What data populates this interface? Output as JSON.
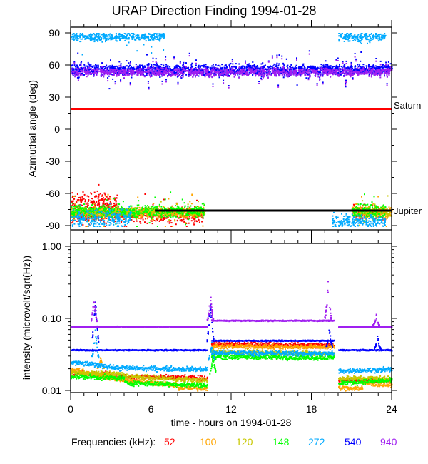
{
  "chart_data": [
    {
      "type": "scatter",
      "title": "URAP Direction Finding  1994-01-28",
      "xlabel": "",
      "ylabel": "Azimuthal angle (deg)",
      "xlim": [
        0,
        24
      ],
      "ylim": [
        -90,
        90
      ],
      "yticks": [
        "90",
        "60",
        "30",
        "0",
        "-30",
        "-60",
        "-90"
      ],
      "ytick_values": [
        90,
        60,
        30,
        0,
        -30,
        -60,
        -90
      ],
      "reference_lines": [
        {
          "label": "Saturn",
          "y": 19,
          "x_range": [
            0,
            24
          ],
          "color": "#ff0000"
        },
        {
          "label": "Jupiter",
          "y": -76,
          "x_range": [
            6.3,
            24
          ],
          "color": "#000000"
        }
      ],
      "series": [
        {
          "name": "52",
          "clusters": [
            [
              0,
              3.5,
              -68,
              6
            ],
            [
              0,
              10,
              -80,
              5
            ],
            [
              21,
              23.5,
              -77,
              4
            ]
          ]
        },
        {
          "name": "100",
          "clusters": [
            [
              0,
              10,
              -77,
              4
            ],
            [
              21,
              24,
              -77,
              5
            ]
          ]
        },
        {
          "name": "120",
          "clusters": [
            [
              0,
              10,
              -77,
              3
            ],
            [
              21,
              24,
              -77,
              4
            ]
          ]
        },
        {
          "name": "148",
          "clusters": [
            [
              0,
              10,
              -76,
              4
            ],
            [
              21,
              23.5,
              -76,
              6
            ]
          ]
        },
        {
          "name": "272",
          "clusters": [
            [
              0,
              4.5,
              -82,
              6
            ],
            [
              0,
              7,
              87,
              3
            ],
            [
              19.5,
              23.5,
              -85,
              4
            ],
            [
              20,
              23.5,
              87,
              3
            ]
          ]
        },
        {
          "name": "540",
          "clusters": [
            [
              0,
              24,
              56,
              4
            ]
          ]
        },
        {
          "name": "940",
          "clusters": [
            [
              0,
              24,
              54,
              3
            ]
          ]
        }
      ]
    },
    {
      "type": "scatter",
      "xlabel": "time - hours on 1994-01-28",
      "ylabel": "intensity (microvolt/sqrt(Hz))",
      "xlim": [
        0,
        24
      ],
      "ylim": [
        0.01,
        1.0
      ],
      "yscale": "log",
      "yticks": [
        "1.00",
        "0.10",
        "0.01"
      ],
      "ytick_values": [
        1.0,
        0.1,
        0.01
      ],
      "xticks": [
        "0",
        "6",
        "12",
        "18",
        "24"
      ],
      "xtick_values": [
        0,
        6,
        12,
        18,
        24
      ],
      "series": [
        {
          "name": "52",
          "segments": [
            [
              0,
              3,
              0.018,
              0.017
            ],
            [
              3,
              10.2,
              0.016,
              0.015
            ],
            [
              10.5,
              19.7,
              0.045,
              0.043
            ],
            [
              20,
              24,
              0.014,
              0.014
            ]
          ],
          "spikes": []
        },
        {
          "name": "100",
          "segments": [
            [
              0,
              3,
              0.02,
              0.015
            ],
            [
              3,
              8,
              0.015,
              0.012
            ],
            [
              8,
              10.2,
              0.011,
              0.011
            ],
            [
              10.5,
              19.7,
              0.042,
              0.041
            ],
            [
              20,
              21.8,
              0.011,
              0.011
            ],
            [
              21.8,
              24,
              0.013,
              0.012
            ]
          ],
          "spikes": [
            [
              2.2,
              0.03
            ]
          ]
        },
        {
          "name": "120",
          "segments": [
            [
              0,
              4,
              0.018,
              0.017
            ],
            [
              4,
              10.2,
              0.016,
              0.014
            ],
            [
              10.5,
              19.7,
              0.035,
              0.033
            ],
            [
              20,
              24,
              0.015,
              0.015
            ]
          ],
          "spikes": []
        },
        {
          "name": "148",
          "segments": [
            [
              0,
              4,
              0.016,
              0.015
            ],
            [
              4,
              10.2,
              0.013,
              0.012
            ],
            [
              10.5,
              19.7,
              0.03,
              0.029
            ],
            [
              20,
              24,
              0.013,
              0.014
            ]
          ],
          "spikes": [
            [
              10.6,
              0.035
            ]
          ]
        },
        {
          "name": "272",
          "segments": [
            [
              0,
              3,
              0.025,
              0.022
            ],
            [
              3,
              10.2,
              0.021,
              0.02
            ],
            [
              10.5,
              19.7,
              0.034,
              0.033
            ],
            [
              20,
              24,
              0.019,
              0.02
            ]
          ],
          "spikes": [
            [
              1.8,
              0.08
            ],
            [
              10.5,
              0.05
            ]
          ]
        },
        {
          "name": "540",
          "segments": [
            [
              0,
              10.2,
              0.037,
              0.037
            ],
            [
              10.5,
              19.7,
              0.05,
              0.05
            ],
            [
              20,
              24,
              0.037,
              0.037
            ]
          ],
          "spikes": [
            [
              1.8,
              0.2
            ],
            [
              10.4,
              0.2
            ],
            [
              19.3,
              0.08
            ],
            [
              22.9,
              0.06
            ]
          ]
        },
        {
          "name": "940",
          "segments": [
            [
              0,
              10.2,
              0.078,
              0.078
            ],
            [
              10.5,
              19.7,
              0.095,
              0.095
            ],
            [
              20,
              24,
              0.078,
              0.078
            ]
          ],
          "spikes": [
            [
              1.7,
              0.22
            ],
            [
              10.4,
              0.25
            ],
            [
              19.2,
              0.35
            ],
            [
              22.8,
              0.12
            ]
          ]
        }
      ]
    }
  ],
  "legend": {
    "label": "Frequencies (kHz):",
    "items": [
      {
        "name": "52",
        "color": "#ff0000"
      },
      {
        "name": "100",
        "color": "#ffa500"
      },
      {
        "name": "120",
        "color": "#c8c800"
      },
      {
        "name": "148",
        "color": "#00ff00"
      },
      {
        "name": "272",
        "color": "#00aaff"
      },
      {
        "name": "540",
        "color": "#0000ff"
      },
      {
        "name": "940",
        "color": "#a020f0"
      }
    ]
  }
}
